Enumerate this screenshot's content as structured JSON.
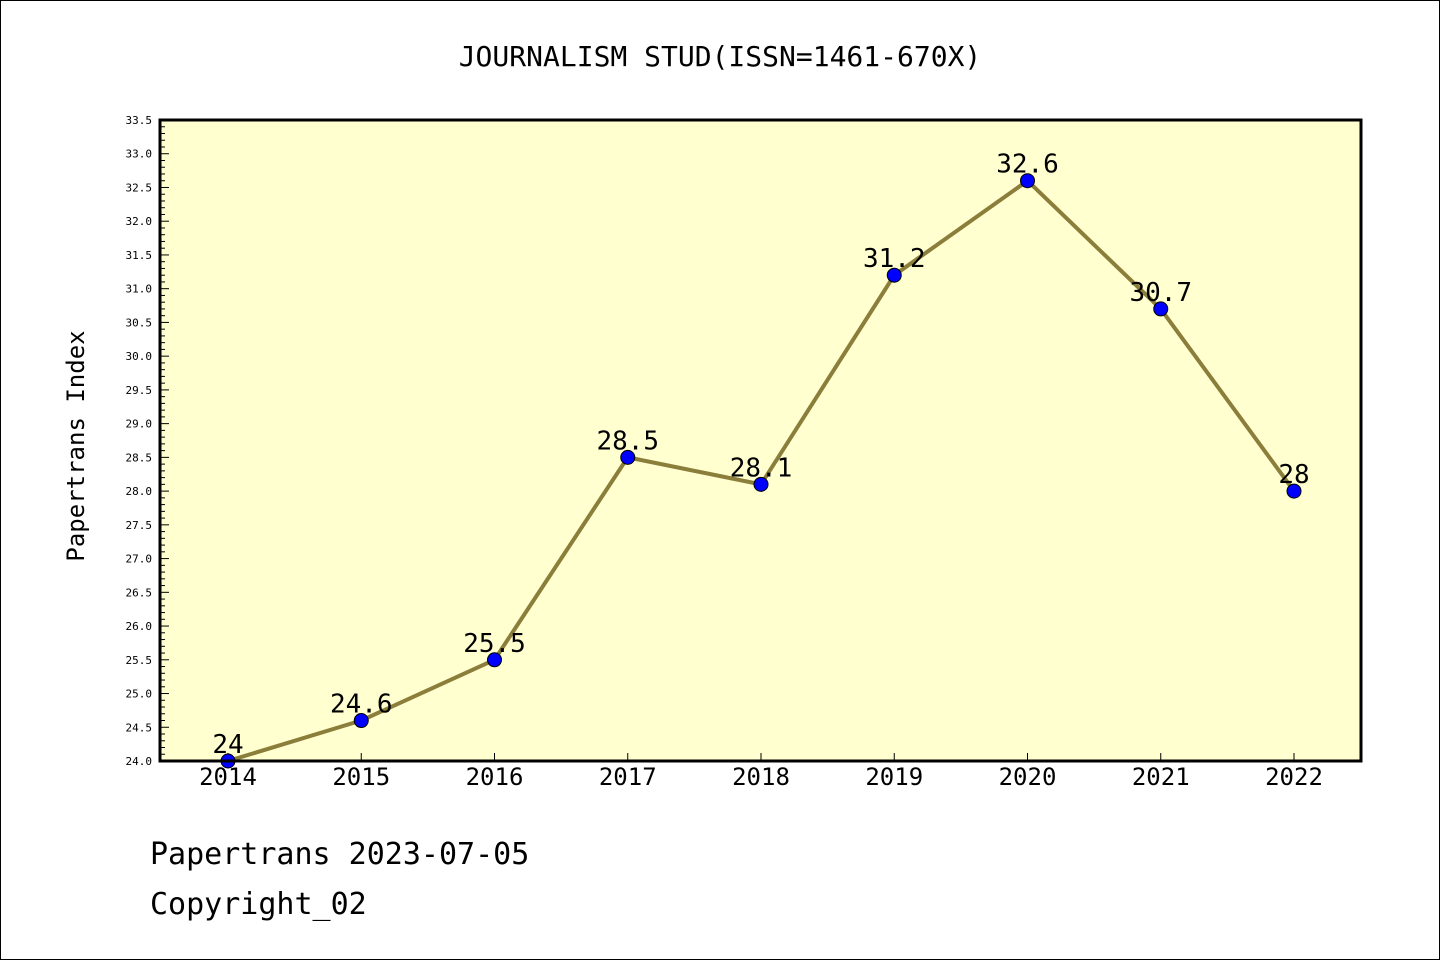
{
  "chart_data": {
    "type": "line",
    "title": "JOURNALISM STUD(ISSN=1461-670X)",
    "xlabel": "",
    "ylabel": "Papertrans Index",
    "categories": [
      "2014",
      "2015",
      "2016",
      "2017",
      "2018",
      "2019",
      "2020",
      "2021",
      "2022"
    ],
    "values": [
      24,
      24.6,
      25.5,
      28.5,
      28.1,
      31.2,
      32.6,
      30.7,
      28
    ],
    "data_labels": [
      "24",
      "24.6",
      "25.5",
      "28.5",
      "28.1",
      "31.2",
      "32.6",
      "30.7",
      "28"
    ],
    "ylim": [
      24.0,
      33.5
    ],
    "yticks": [
      "24.0",
      "24.5",
      "25.0",
      "25.5",
      "26.0",
      "26.5",
      "27.0",
      "27.5",
      "28.0",
      "28.5",
      "29.0",
      "29.5",
      "30.0",
      "30.5",
      "31.0",
      "31.5",
      "32.0",
      "32.5",
      "33.0",
      "33.5"
    ],
    "grid": false,
    "colors": {
      "plot_background": "#ffffd0",
      "line": "#8b7d3a",
      "marker": "#0000ff"
    }
  },
  "footer": {
    "line1": "Papertrans 2023-07-05",
    "line2": "Copyright_02"
  }
}
